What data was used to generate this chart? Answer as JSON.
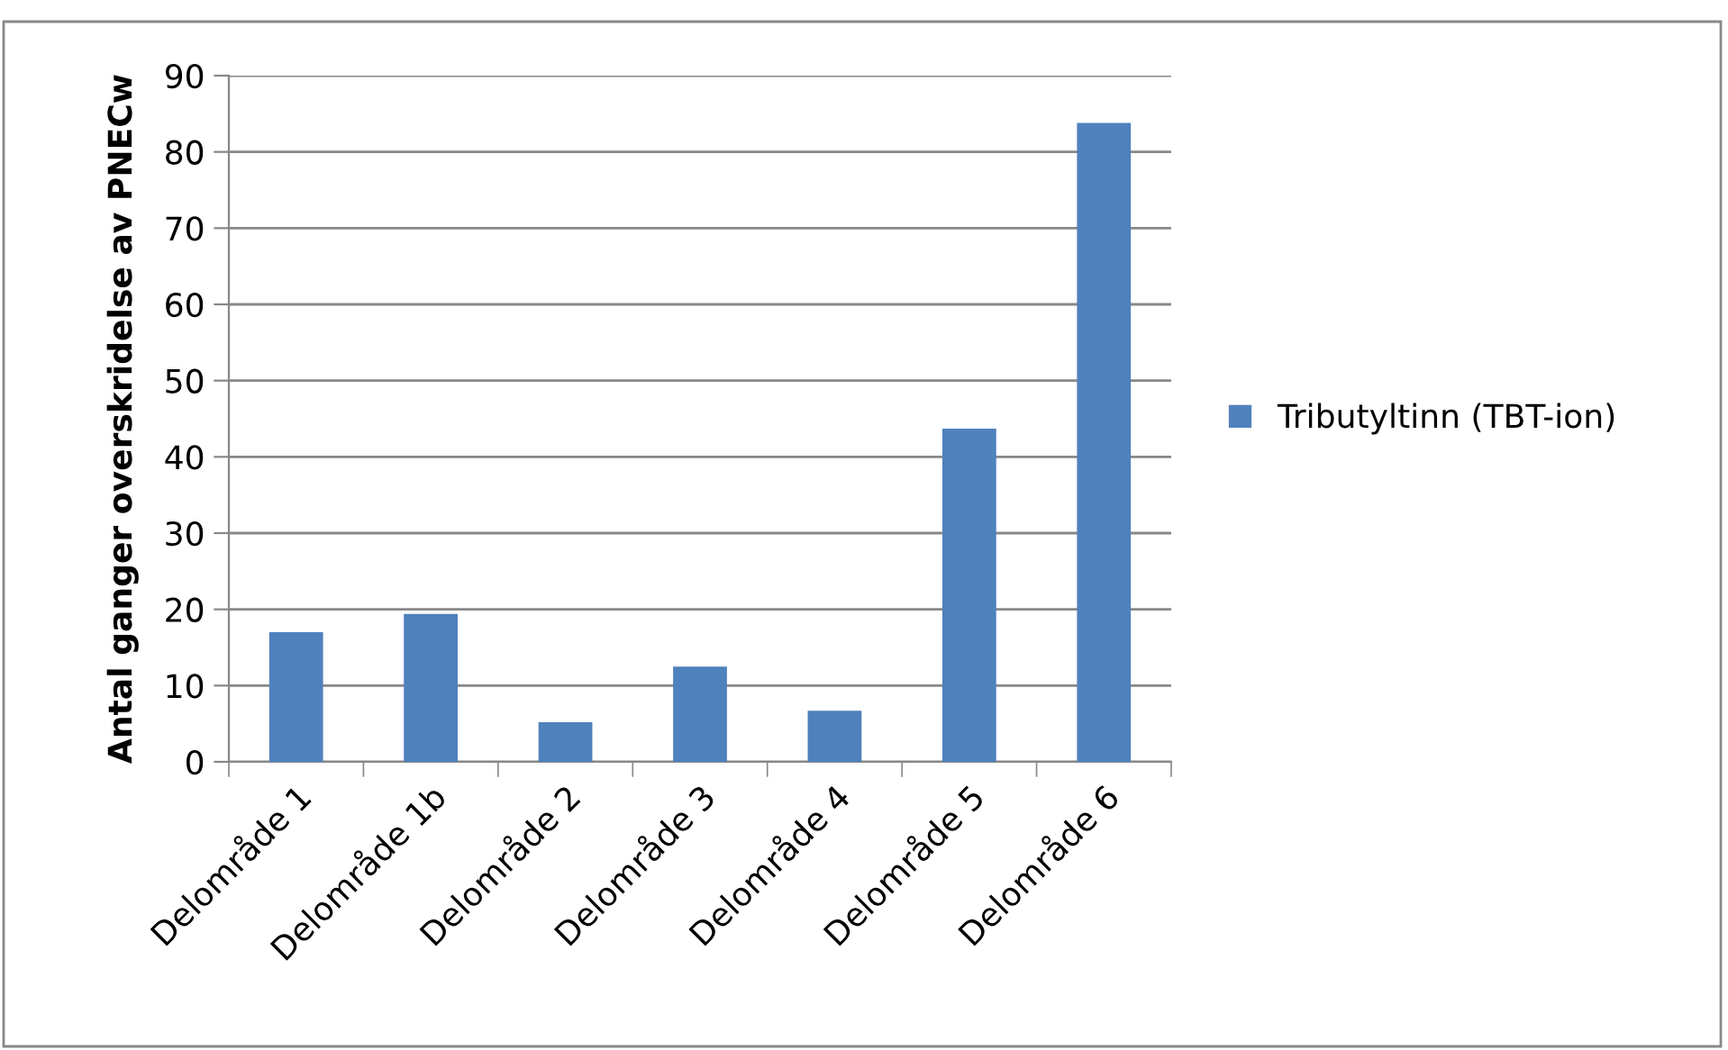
{
  "chart_data": {
    "type": "bar",
    "ylabel": "Antal ganger overskridelse av PNECw",
    "categories": [
      "Delområde 1",
      "Delområde 1b",
      "Delområde 2",
      "Delområde 3",
      "Delområde 4",
      "Delområde 5",
      "Delområde 6"
    ],
    "series": [
      {
        "name": "Tributyltinn (TBT-ion)",
        "color": "#4f81bd",
        "values": [
          17.0,
          19.4,
          5.2,
          12.5,
          6.7,
          43.7,
          83.8
        ]
      }
    ],
    "ylim": [
      0,
      90
    ],
    "yticks": [
      0,
      10,
      20,
      30,
      40,
      50,
      60,
      70,
      80,
      90
    ],
    "grid": "y",
    "legend": "right"
  }
}
